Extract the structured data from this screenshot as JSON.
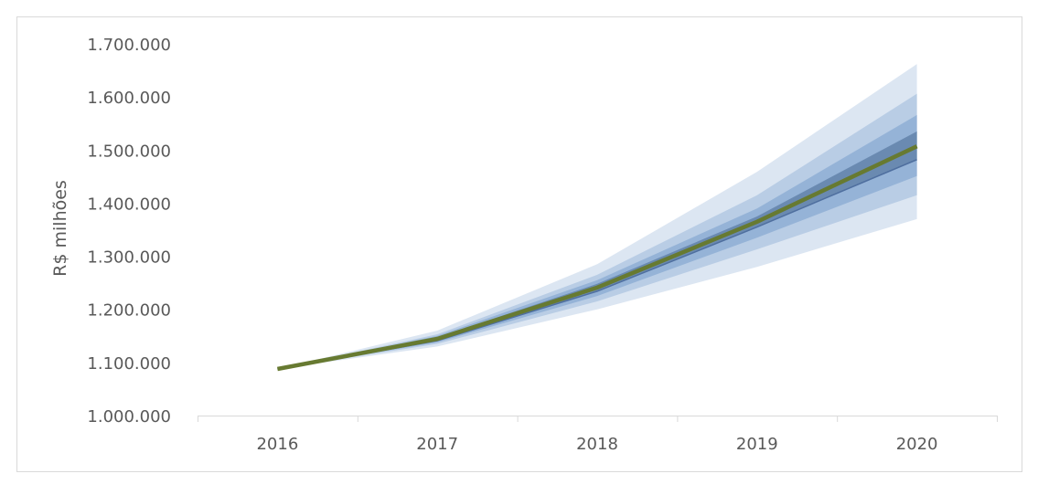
{
  "chart_data": {
    "type": "area",
    "subtype": "fan-chart",
    "title": "",
    "xlabel": "",
    "ylabel": "R$ milhões",
    "ylim": [
      1000000,
      1700000
    ],
    "yticks": [
      1000000,
      1100000,
      1200000,
      1300000,
      1400000,
      1500000,
      1600000,
      1700000
    ],
    "ytick_labels": [
      "1.000.000",
      "1.100.000",
      "1.200.000",
      "1.300.000",
      "1.400.000",
      "1.500.000",
      "1.600.000",
      "1.700.000"
    ],
    "categories": [
      "2016",
      "2017",
      "2018",
      "2019",
      "2020"
    ],
    "grid": false,
    "legend": "none",
    "central": {
      "values": [
        1087700,
        1144500,
        1241000,
        1365000,
        1507000
      ],
      "color": "#677a31"
    },
    "bands": [
      {
        "lower": [
          1087700,
          1130000,
          1200000,
          1280000,
          1370000
        ],
        "upper": [
          1087700,
          1160000,
          1285000,
          1459000,
          1662000
        ],
        "color": "#dce6f2"
      },
      {
        "lower": [
          1087700,
          1135000,
          1215000,
          1313000,
          1415000
        ],
        "upper": [
          1087700,
          1153000,
          1265000,
          1415000,
          1606000
        ],
        "color": "#b9cde5"
      },
      {
        "lower": [
          1087700,
          1138000,
          1225000,
          1335000,
          1451000
        ],
        "upper": [
          1087700,
          1150000,
          1255000,
          1390000,
          1566000
        ],
        "color": "#95b3d7"
      },
      {
        "lower": [
          1087700,
          1141000,
          1234000,
          1355000,
          1482000
        ],
        "upper": [
          1087700,
          1147000,
          1248000,
          1375000,
          1535000
        ],
        "color": "#6a8ab1"
      }
    ]
  }
}
